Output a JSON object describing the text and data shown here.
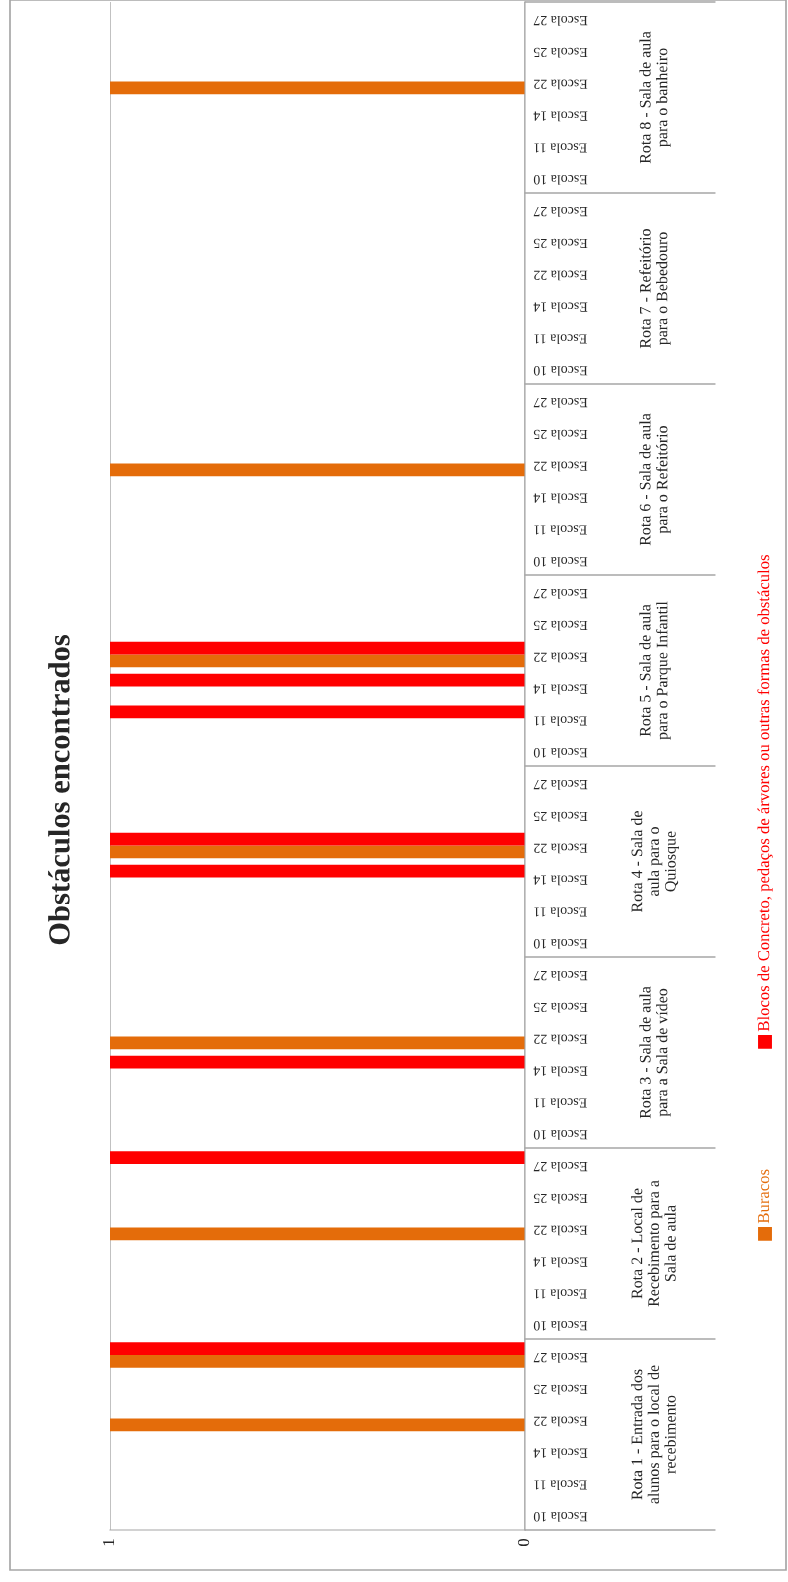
{
  "chart_data": {
    "type": "bar",
    "orientation": "horizontal",
    "title": "Obstáculos encontrados",
    "categories": [
      "Escola 27",
      "Escola 25",
      "Escola 22",
      "Escola 14",
      "Escola 11",
      "Escola 10",
      "Escola 27",
      "Escola 25",
      "Escola 22",
      "Escola 14",
      "Escola 11",
      "Escola 10",
      "Escola 27",
      "Escola 25",
      "Escola 22",
      "Escola 14",
      "Escola 11",
      "Escola 10",
      "Escola 27",
      "Escola 25",
      "Escola 22",
      "Escola 14",
      "Escola 11",
      "Escola 10",
      "Escola 27",
      "Escola 25",
      "Escola 22",
      "Escola 14",
      "Escola 11",
      "Escola 10",
      "Escola 27",
      "Escola 25",
      "Escola 22",
      "Escola 14",
      "Escola 11",
      "Escola 10",
      "Escola 27",
      "Escola 25",
      "Escola 22",
      "Escola 14",
      "Escola 11",
      "Escola 10",
      "Escola 27",
      "Escola 25",
      "Escola 22",
      "Escola 14",
      "Escola 11",
      "Escola 10"
    ],
    "series": [
      {
        "name": "Buracos",
        "color": "#e46c0a",
        "values": [
          0,
          0,
          1,
          0,
          0,
          0,
          0,
          0,
          0,
          0,
          0,
          0,
          0,
          0,
          1,
          0,
          0,
          0,
          0,
          0,
          1,
          0,
          0,
          0,
          0,
          0,
          1,
          0,
          0,
          0,
          0,
          0,
          1,
          0,
          0,
          0,
          0,
          0,
          1,
          0,
          0,
          0,
          1,
          0,
          1,
          0,
          0,
          0
        ]
      },
      {
        "name": "Blocos de Concreto, pedaços de árvores ou outras formas de obstáculos",
        "color": "#ff0000",
        "values": [
          0,
          0,
          0,
          0,
          0,
          0,
          0,
          0,
          0,
          0,
          0,
          0,
          0,
          0,
          0,
          0,
          0,
          0,
          0,
          0,
          1,
          1,
          1,
          0,
          0,
          0,
          1,
          1,
          0,
          0,
          0,
          0,
          0,
          1,
          0,
          0,
          1,
          0,
          0,
          0,
          0,
          0,
          1,
          0,
          0,
          0,
          0,
          0
        ]
      }
    ],
    "annotations": [
      "Rota 8 - Sala de aula\npara o banheiro",
      "Rota 7 - Refeitório\npara o Bebedouro",
      "Rota 6 - Sala de aula\npara o Refeitório",
      "Rota 5 - Sala de aula\npara o Parque Infantil",
      "Rota 4 - Sala de\naula para o\nQuiosque",
      "Rota 3 - Sala de aula\npara a Sala de vídeo",
      "Rota 2 - Local de\nRecebimento para a\nSala de aula",
      "Rota 1 - Entrada dos\nalunos para o local de\nrecebimento"
    ],
    "xlim": [
      1,
      0
    ],
    "xticks": [
      0,
      1
    ],
    "grid": "x",
    "legend": "bottom"
  }
}
